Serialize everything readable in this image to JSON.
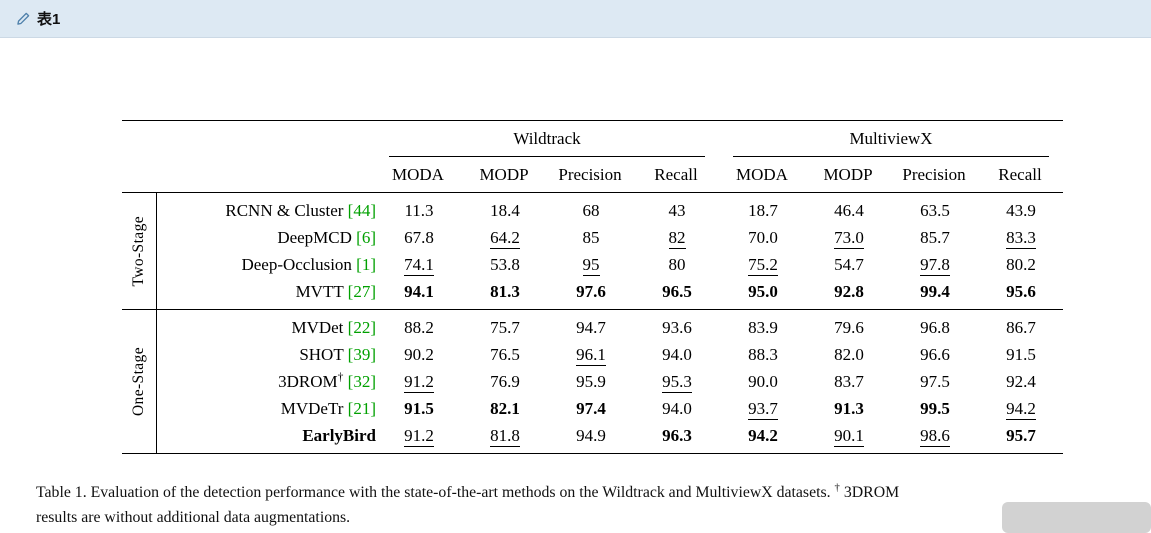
{
  "topbar": {
    "title": "表1"
  },
  "colors": {
    "citation_green": "#00a000",
    "topbar_bg": "#dde9f3",
    "overlay_gray": "#d2d2d2"
  },
  "table": {
    "groups": [
      {
        "label": "Wildtrack"
      },
      {
        "label": "MultiviewX"
      }
    ],
    "col_headers": [
      "MODA",
      "MODP",
      "Precision",
      "Recall",
      "MODA",
      "MODP",
      "Precision",
      "Recall"
    ],
    "sections": [
      {
        "label": "Two-Stage",
        "rows": [
          {
            "method": "RCNN & Cluster",
            "cite": "[44]",
            "bold_method": false,
            "cells": [
              {
                "v": "11.3",
                "s": "p"
              },
              {
                "v": "18.4",
                "s": "p"
              },
              {
                "v": "68",
                "s": "p"
              },
              {
                "v": "43",
                "s": "p"
              },
              {
                "v": "18.7",
                "s": "p"
              },
              {
                "v": "46.4",
                "s": "p"
              },
              {
                "v": "63.5",
                "s": "p"
              },
              {
                "v": "43.9",
                "s": "p"
              }
            ]
          },
          {
            "method": "DeepMCD",
            "cite": "[6]",
            "bold_method": false,
            "cells": [
              {
                "v": "67.8",
                "s": "p"
              },
              {
                "v": "64.2",
                "s": "u"
              },
              {
                "v": "85",
                "s": "p"
              },
              {
                "v": "82",
                "s": "u"
              },
              {
                "v": "70.0",
                "s": "p"
              },
              {
                "v": "73.0",
                "s": "u"
              },
              {
                "v": "85.7",
                "s": "p"
              },
              {
                "v": "83.3",
                "s": "u"
              }
            ]
          },
          {
            "method": "Deep-Occlusion",
            "cite": "[1]",
            "bold_method": false,
            "cells": [
              {
                "v": "74.1",
                "s": "u"
              },
              {
                "v": "53.8",
                "s": "p"
              },
              {
                "v": "95",
                "s": "u"
              },
              {
                "v": "80",
                "s": "p"
              },
              {
                "v": "75.2",
                "s": "u"
              },
              {
                "v": "54.7",
                "s": "p"
              },
              {
                "v": "97.8",
                "s": "u"
              },
              {
                "v": "80.2",
                "s": "p"
              }
            ]
          },
          {
            "method": "MVTT",
            "cite": "[27]",
            "bold_method": false,
            "cells": [
              {
                "v": "94.1",
                "s": "b"
              },
              {
                "v": "81.3",
                "s": "b"
              },
              {
                "v": "97.6",
                "s": "b"
              },
              {
                "v": "96.5",
                "s": "b"
              },
              {
                "v": "95.0",
                "s": "b"
              },
              {
                "v": "92.8",
                "s": "b"
              },
              {
                "v": "99.4",
                "s": "b"
              },
              {
                "v": "95.6",
                "s": "b"
              }
            ]
          }
        ]
      },
      {
        "label": "One-Stage",
        "rows": [
          {
            "method": "MVDet",
            "cite": "[22]",
            "bold_method": false,
            "cells": [
              {
                "v": "88.2",
                "s": "p"
              },
              {
                "v": "75.7",
                "s": "p"
              },
              {
                "v": "94.7",
                "s": "p"
              },
              {
                "v": "93.6",
                "s": "p"
              },
              {
                "v": "83.9",
                "s": "p"
              },
              {
                "v": "79.6",
                "s": "p"
              },
              {
                "v": "96.8",
                "s": "p"
              },
              {
                "v": "86.7",
                "s": "p"
              }
            ]
          },
          {
            "method": "SHOT",
            "cite": "[39]",
            "bold_method": false,
            "cells": [
              {
                "v": "90.2",
                "s": "p"
              },
              {
                "v": "76.5",
                "s": "p"
              },
              {
                "v": "96.1",
                "s": "u"
              },
              {
                "v": "94.0",
                "s": "p"
              },
              {
                "v": "88.3",
                "s": "p"
              },
              {
                "v": "82.0",
                "s": "p"
              },
              {
                "v": "96.6",
                "s": "p"
              },
              {
                "v": "91.5",
                "s": "p"
              }
            ]
          },
          {
            "method": "3DROM",
            "sup": "†",
            "cite": "[32]",
            "bold_method": false,
            "cells": [
              {
                "v": "91.2",
                "s": "u"
              },
              {
                "v": "76.9",
                "s": "p"
              },
              {
                "v": "95.9",
                "s": "p"
              },
              {
                "v": "95.3",
                "s": "u"
              },
              {
                "v": "90.0",
                "s": "p"
              },
              {
                "v": "83.7",
                "s": "p"
              },
              {
                "v": "97.5",
                "s": "p"
              },
              {
                "v": "92.4",
                "s": "p"
              }
            ]
          },
          {
            "method": "MVDeTr",
            "cite": "[21]",
            "bold_method": false,
            "cells": [
              {
                "v": "91.5",
                "s": "b"
              },
              {
                "v": "82.1",
                "s": "b"
              },
              {
                "v": "97.4",
                "s": "b"
              },
              {
                "v": "94.0",
                "s": "p"
              },
              {
                "v": "93.7",
                "s": "u"
              },
              {
                "v": "91.3",
                "s": "b"
              },
              {
                "v": "99.5",
                "s": "b"
              },
              {
                "v": "94.2",
                "s": "u"
              }
            ]
          },
          {
            "method": "EarlyBird",
            "bold_method": true,
            "cells": [
              {
                "v": "91.2",
                "s": "u"
              },
              {
                "v": "81.8",
                "s": "u"
              },
              {
                "v": "94.9",
                "s": "p"
              },
              {
                "v": "96.3",
                "s": "b"
              },
              {
                "v": "94.2",
                "s": "b"
              },
              {
                "v": "90.1",
                "s": "u"
              },
              {
                "v": "98.6",
                "s": "u"
              },
              {
                "v": "95.7",
                "s": "b"
              }
            ]
          }
        ]
      }
    ]
  },
  "caption": {
    "line1_pre": "Table 1. Evaluation of the detection performance with the state-of-the-art methods on the Wildtrack and MultiviewX datasets. ",
    "dagger": "†",
    "line1_post": " 3DROM",
    "line2": "results are without additional data augmentations."
  }
}
